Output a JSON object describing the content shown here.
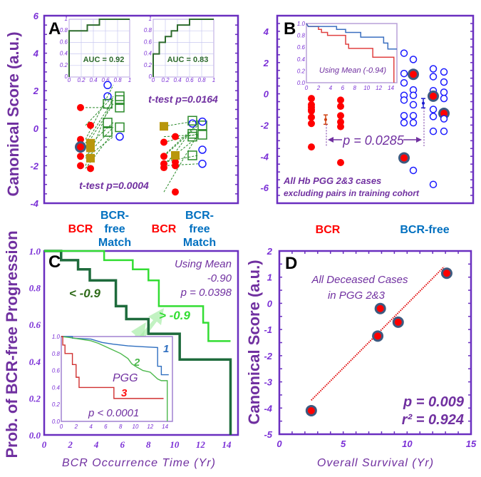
{
  "colors": {
    "axis": "#6a2fc0",
    "text": "#7030a0",
    "bcr": "#ff0000",
    "free": "#0070c0",
    "circle": "#1a1aff",
    "dark_green": "#1e6b3c",
    "light_green": "#33dd33",
    "roc": "#2d6b2d",
    "highlight": "#3d5a80",
    "gold": "#b8960c",
    "pair_line": "#2a8a2a"
  },
  "chart_data": [
    {
      "panel": "A",
      "type": "scatter",
      "ylabel": "Canonical Score (a.u.)",
      "ylim": [
        -4,
        6
      ],
      "yticks": [
        "6",
        "4",
        "2",
        "0",
        "-2",
        "-4"
      ],
      "groups": [
        {
          "bcr_label": "BCR",
          "free_label_lines": [
            "BCR-",
            "free",
            "Match"
          ],
          "ttest": "t-test p=0.0004",
          "bcr_col1": [
            1.1,
            -0.6,
            -1.0,
            -1.5,
            -2.0
          ],
          "bcr_col1_highlight": [
            -1.0
          ],
          "bcr_col2": [
            0.15,
            -2.15
          ],
          "gold_col2": [
            -0.8,
            -1.05,
            -1.6
          ],
          "free_col1_circles": [
            2.3,
            1.7
          ],
          "free_col1_squares": [
            1.3,
            0.3,
            -0.2
          ],
          "free_col2_squares": [
            1.7,
            1.5,
            1.1,
            0.05
          ],
          "free_col2_circles": [
            -0.45
          ],
          "pairs": [
            [
              1.1,
              1.1
            ],
            [
              0.15,
              1.7
            ],
            [
              -0.6,
              2.3
            ],
            [
              -0.8,
              1.5
            ],
            [
              -1.0,
              1.3
            ],
            [
              -1.05,
              0.3
            ],
            [
              -1.5,
              0.05
            ],
            [
              -1.6,
              -0.45
            ],
            [
              -2.0,
              1.7
            ],
            [
              -2.15,
              -0.2
            ]
          ]
        },
        {
          "bcr_label": "BCR",
          "free_label_lines": [
            "BCR-",
            "free",
            "Match"
          ],
          "ttest": "t-test p=0.0164",
          "bcr_col1": [
            -0.75,
            -1.5,
            -1.9,
            -2.1
          ],
          "bcr_col1_highlight": [],
          "gold_col1": [
            0.1
          ],
          "bcr_col2": [
            -0.45,
            -1.8,
            -2.0,
            -3.4
          ],
          "gold_col2": [
            -1.45
          ],
          "free_col1_circles": [
            0.25
          ],
          "free_col1_squares": [
            0.4,
            -0.3,
            -0.45,
            -1.45
          ],
          "free_col2_squares": [
            0.15,
            -0.35
          ],
          "free_col2_circles": [
            0.35,
            -1.15,
            -1.9
          ],
          "pairs": [
            [
              0.1,
              0.4
            ],
            [
              -0.45,
              -0.35
            ],
            [
              -0.75,
              -0.3
            ],
            [
              -1.45,
              0.25
            ],
            [
              -1.5,
              0.15
            ],
            [
              -1.8,
              -1.45
            ],
            [
              -1.9,
              -0.45
            ],
            [
              -2.0,
              -1.9
            ],
            [
              -2.1,
              0.35
            ],
            [
              -3.4,
              -0.3
            ]
          ]
        }
      ],
      "roc_insets": [
        {
          "auc": "AUC = 0.92",
          "points": [
            [
              0,
              0
            ],
            [
              0,
              0.8
            ],
            [
              0.3,
              0.8
            ],
            [
              0.3,
              0.9
            ],
            [
              0.5,
              0.9
            ],
            [
              0.5,
              1
            ],
            [
              1,
              1
            ]
          ]
        },
        {
          "auc": "AUC = 0.83",
          "points": [
            [
              0,
              0
            ],
            [
              0,
              0.4
            ],
            [
              0.1,
              0.4
            ],
            [
              0.1,
              0.6
            ],
            [
              0.2,
              0.6
            ],
            [
              0.2,
              0.7
            ],
            [
              0.3,
              0.7
            ],
            [
              0.3,
              0.8
            ],
            [
              0.4,
              0.8
            ],
            [
              0.4,
              0.9
            ],
            [
              0.6,
              0.9
            ],
            [
              0.6,
              1
            ],
            [
              1,
              1
            ]
          ]
        }
      ],
      "roc_xticks": [
        "0",
        "0.2",
        "0.4",
        "0.6",
        "0.8",
        "1"
      ],
      "roc_yticks": [
        "0",
        "0.2",
        "0.4",
        "0.6",
        "0.8",
        "1"
      ]
    },
    {
      "panel": "B",
      "type": "scatter",
      "ylim": [
        -7,
        5
      ],
      "yticks": [
        "4",
        "2",
        "0",
        "-2",
        "-4",
        "-6"
      ],
      "categories": [
        "BCR",
        "BCR-free"
      ],
      "bcr_cols": [
        [
          -0.3,
          -0.7,
          -0.85,
          -1.0,
          -1.1,
          -1.5,
          -1.9,
          -3.4
        ],
        [
          -0.4,
          -0.8,
          -1.4,
          -1.8,
          -2.1,
          -4.4
        ]
      ],
      "bcr_mean": -1.65,
      "bcr_err": 0.3,
      "free_cols": [
        [
          2.6,
          1.3,
          0.7,
          -0.1,
          -0.4,
          -1.4,
          -1.85,
          -4.1
        ],
        [
          2.2,
          1.25,
          0.25,
          -0.1,
          -0.7,
          -1.4,
          -1.85,
          -4.9
        ],
        [
          1.6,
          1.1,
          0.2,
          -0.15,
          -1.0,
          -1.45,
          -2.4,
          -5.8
        ],
        [
          1.4,
          0.75,
          0.1,
          -0.3,
          -1.25,
          -1.6,
          -2.4
        ]
      ],
      "free_highlight": [
        [
          -4.1
        ],
        [
          1.25
        ],
        [
          -0.15
        ],
        [
          -1.25
        ]
      ],
      "free_mean": -0.6,
      "free_err": 0.3,
      "p_value": "p = 0.0285",
      "note_lines": [
        "All Hb PGG 2&3 cases",
        "excluding pairs in training cohort"
      ],
      "inset": {
        "type": "line",
        "xlim": [
          0,
          15
        ],
        "ylim": [
          0,
          1
        ],
        "label": "Using Mean (-0.94)",
        "xticks": [
          "0",
          "2",
          "4",
          "6",
          "8",
          "10",
          "12",
          "14"
        ],
        "yticks": [
          "1.0",
          "0.8",
          "0.6",
          "0.4",
          "0.2",
          "0.0"
        ],
        "series": [
          {
            "color": "bcr",
            "points": [
              [
                0,
                1
              ],
              [
                0.3,
                0.95
              ],
              [
                2,
                0.95
              ],
              [
                2,
                0.9
              ],
              [
                2.5,
                0.9
              ],
              [
                2.5,
                0.85
              ],
              [
                3.5,
                0.85
              ],
              [
                3.5,
                0.8
              ],
              [
                6.5,
                0.8
              ],
              [
                6.5,
                0.65
              ],
              [
                7,
                0.65
              ],
              [
                7,
                0.58
              ],
              [
                11,
                0.58
              ],
              [
                11,
                0.43
              ],
              [
                14.5,
                0.43
              ],
              [
                14.5,
                0
              ]
            ]
          },
          {
            "color": "free",
            "points": [
              [
                0,
                1
              ],
              [
                0.3,
                0.95
              ],
              [
                5,
                0.95
              ],
              [
                5,
                0.9
              ],
              [
                6.5,
                0.9
              ],
              [
                6.5,
                0.85
              ],
              [
                9,
                0.85
              ],
              [
                9,
                0.77
              ],
              [
                12.8,
                0.77
              ],
              [
                12.8,
                0.67
              ],
              [
                13.5,
                0.67
              ],
              [
                13.5,
                0.57
              ],
              [
                15,
                0.57
              ]
            ]
          }
        ]
      }
    },
    {
      "panel": "C",
      "type": "line",
      "xlim": [
        0,
        15
      ],
      "ylim": [
        0,
        1
      ],
      "xlabel": "BCR Occurrence Time (Yr)",
      "ylabel": "Prob. of BCR-free Progression",
      "xticks": [
        "0",
        "2",
        "4",
        "6",
        "8",
        "10",
        "12",
        "14"
      ],
      "yticks": [
        "1.0",
        "0.8",
        "0.6",
        "0.4",
        "0.2",
        "0.0"
      ],
      "annotation_lines": [
        "Using Mean",
        "-0.90",
        "p = 0.0398"
      ],
      "series": [
        {
          "name": "< -0.9",
          "color": "dark_green",
          "points": [
            [
              0,
              1
            ],
            [
              1.3,
              1
            ],
            [
              1.3,
              0.95
            ],
            [
              2.6,
              0.95
            ],
            [
              2.6,
              0.9
            ],
            [
              3.5,
              0.9
            ],
            [
              3.5,
              0.84
            ],
            [
              5.5,
              0.84
            ],
            [
              5.5,
              0.7
            ],
            [
              6.3,
              0.7
            ],
            [
              6.3,
              0.63
            ],
            [
              8,
              0.63
            ],
            [
              8,
              0.55
            ],
            [
              10.4,
              0.55
            ],
            [
              10.4,
              0.41
            ],
            [
              14.3,
              0.41
            ],
            [
              14.3,
              0
            ]
          ]
        },
        {
          "name": "> -0.9",
          "color": "light_green",
          "points": [
            [
              0,
              1
            ],
            [
              4.6,
              1
            ],
            [
              4.6,
              0.95
            ],
            [
              6.8,
              0.95
            ],
            [
              6.8,
              0.9
            ],
            [
              8,
              0.9
            ],
            [
              8,
              0.84
            ],
            [
              8.8,
              0.84
            ],
            [
              8.8,
              0.7
            ],
            [
              12.2,
              0.7
            ],
            [
              12.2,
              0.61
            ],
            [
              12.6,
              0.61
            ],
            [
              12.6,
              0.51
            ],
            [
              14.3,
              0.51
            ]
          ]
        }
      ],
      "inset": {
        "type": "line",
        "xlim": [
          0,
          15
        ],
        "ylim": [
          0,
          1
        ],
        "label": "PGG",
        "p_value": "p < 0.0001",
        "xticks": [
          "0",
          "2",
          "4",
          "6",
          "8",
          "10",
          "12",
          "14"
        ],
        "yticks": [
          "1.0",
          "0.8",
          "0.6",
          "0.4",
          "0.2",
          "0.0"
        ],
        "series": [
          {
            "name": "1",
            "color": "free",
            "points": [
              [
                0,
                1
              ],
              [
                1.5,
                1
              ],
              [
                1.5,
                0.98
              ],
              [
                4,
                0.97
              ],
              [
                5.5,
                0.93
              ],
              [
                7,
                0.91
              ],
              [
                9,
                0.89
              ],
              [
                11,
                0.88
              ],
              [
                13,
                0.87
              ],
              [
                13,
                0.65
              ],
              [
                13.5,
                0.65
              ],
              [
                13.5,
                0.55
              ],
              [
                14.5,
                0.55
              ]
            ]
          },
          {
            "name": "2",
            "color": "light_green_2",
            "points": [
              [
                0,
                1
              ],
              [
                1,
                0.99
              ],
              [
                2.5,
                0.97
              ],
              [
                4,
                0.95
              ],
              [
                5,
                0.92
              ],
              [
                6,
                0.88
              ],
              [
                7,
                0.84
              ],
              [
                8,
                0.8
              ],
              [
                9,
                0.74
              ],
              [
                9.5,
                0.68
              ],
              [
                10,
                0.65
              ],
              [
                11,
                0.6
              ],
              [
                12,
                0.58
              ],
              [
                13,
                0.5
              ],
              [
                13.5,
                0.48
              ],
              [
                14.3,
                0.48
              ],
              [
                14.3,
                0
              ]
            ]
          },
          {
            "name": "3",
            "color": "bcr",
            "points": [
              [
                0,
                1
              ],
              [
                0.2,
                1
              ],
              [
                0.2,
                0.9
              ],
              [
                0.5,
                0.9
              ],
              [
                0.5,
                0.8
              ],
              [
                1.5,
                0.8
              ],
              [
                1.5,
                0.67
              ],
              [
                2,
                0.67
              ],
              [
                2,
                0.52
              ],
              [
                2.4,
                0.52
              ],
              [
                2.4,
                0.4
              ],
              [
                7.1,
                0.4
              ],
              [
                7.1,
                0.27
              ],
              [
                13.8,
                0.27
              ]
            ]
          }
        ]
      }
    },
    {
      "panel": "D",
      "type": "scatter",
      "xlim": [
        0,
        15
      ],
      "ylim": [
        -5,
        2
      ],
      "xlabel": "Overall Survival (Yr)",
      "ylabel": "Canonical Score (a.u.)",
      "xticks": [
        "0",
        "5",
        "10",
        "15"
      ],
      "yticks": [
        "2",
        "1",
        "0",
        "-1",
        "-2",
        "-3",
        "-4",
        "-5"
      ],
      "points": [
        [
          2.5,
          -4.1
        ],
        [
          7.7,
          -1.25
        ],
        [
          7.9,
          -0.2
        ],
        [
          9.3,
          -0.72
        ],
        [
          13.1,
          1.15
        ]
      ],
      "fit_line": [
        [
          2.5,
          -3.7
        ],
        [
          12.9,
          1.4
        ]
      ],
      "note_lines": [
        "All Deceased  Cases",
        "in PGG  2&3"
      ],
      "p_value": "p = 0.009",
      "r2": "r² = 0.924"
    }
  ]
}
